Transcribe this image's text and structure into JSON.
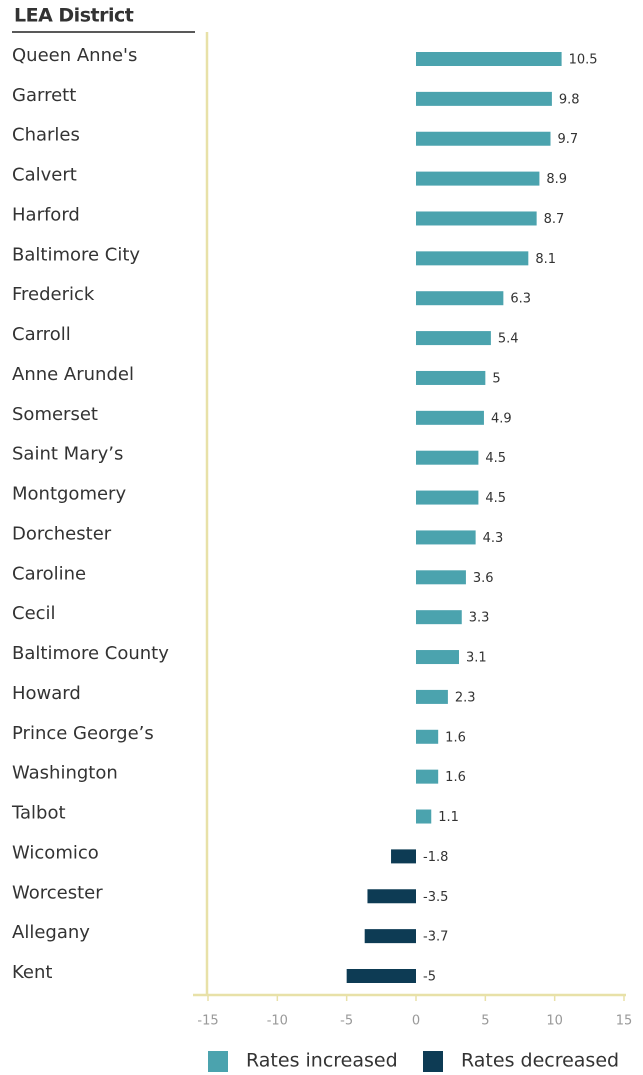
{
  "chart_data": {
    "type": "bar",
    "orientation": "horizontal",
    "y_axis_title": "LEA District",
    "categories": [
      "Queen Anne's",
      "Garrett",
      "Charles",
      "Calvert",
      "Harford",
      "Baltimore City",
      "Frederick",
      "Carroll",
      "Anne Arundel",
      "Somerset",
      "Saint Mary’s",
      "Montgomery",
      "Dorchester",
      "Caroline",
      "Cecil",
      "Baltimore County",
      "Howard",
      "Prince George’s",
      "Washington",
      "Talbot",
      "Wicomico",
      "Worcester",
      "Allegany",
      "Kent"
    ],
    "series": [
      {
        "name": "Rates increased",
        "color": "#4ba3ae",
        "values": [
          10.5,
          9.8,
          9.7,
          8.9,
          8.7,
          8.1,
          6.3,
          5.4,
          5,
          4.9,
          4.5,
          4.5,
          4.3,
          3.6,
          3.3,
          3.1,
          2.3,
          1.6,
          1.6,
          1.1,
          null,
          null,
          null,
          null
        ]
      },
      {
        "name": "Rates decreased",
        "color": "#0d3b54",
        "values": [
          null,
          null,
          null,
          null,
          null,
          null,
          null,
          null,
          null,
          null,
          null,
          null,
          null,
          null,
          null,
          null,
          null,
          null,
          null,
          null,
          -1.8,
          -3.5,
          -3.7,
          -5
        ]
      }
    ],
    "xlim": [
      -15,
      15
    ],
    "xticks": [
      -15,
      -10,
      -5,
      0,
      5,
      10,
      15
    ],
    "legend": "bottom"
  }
}
